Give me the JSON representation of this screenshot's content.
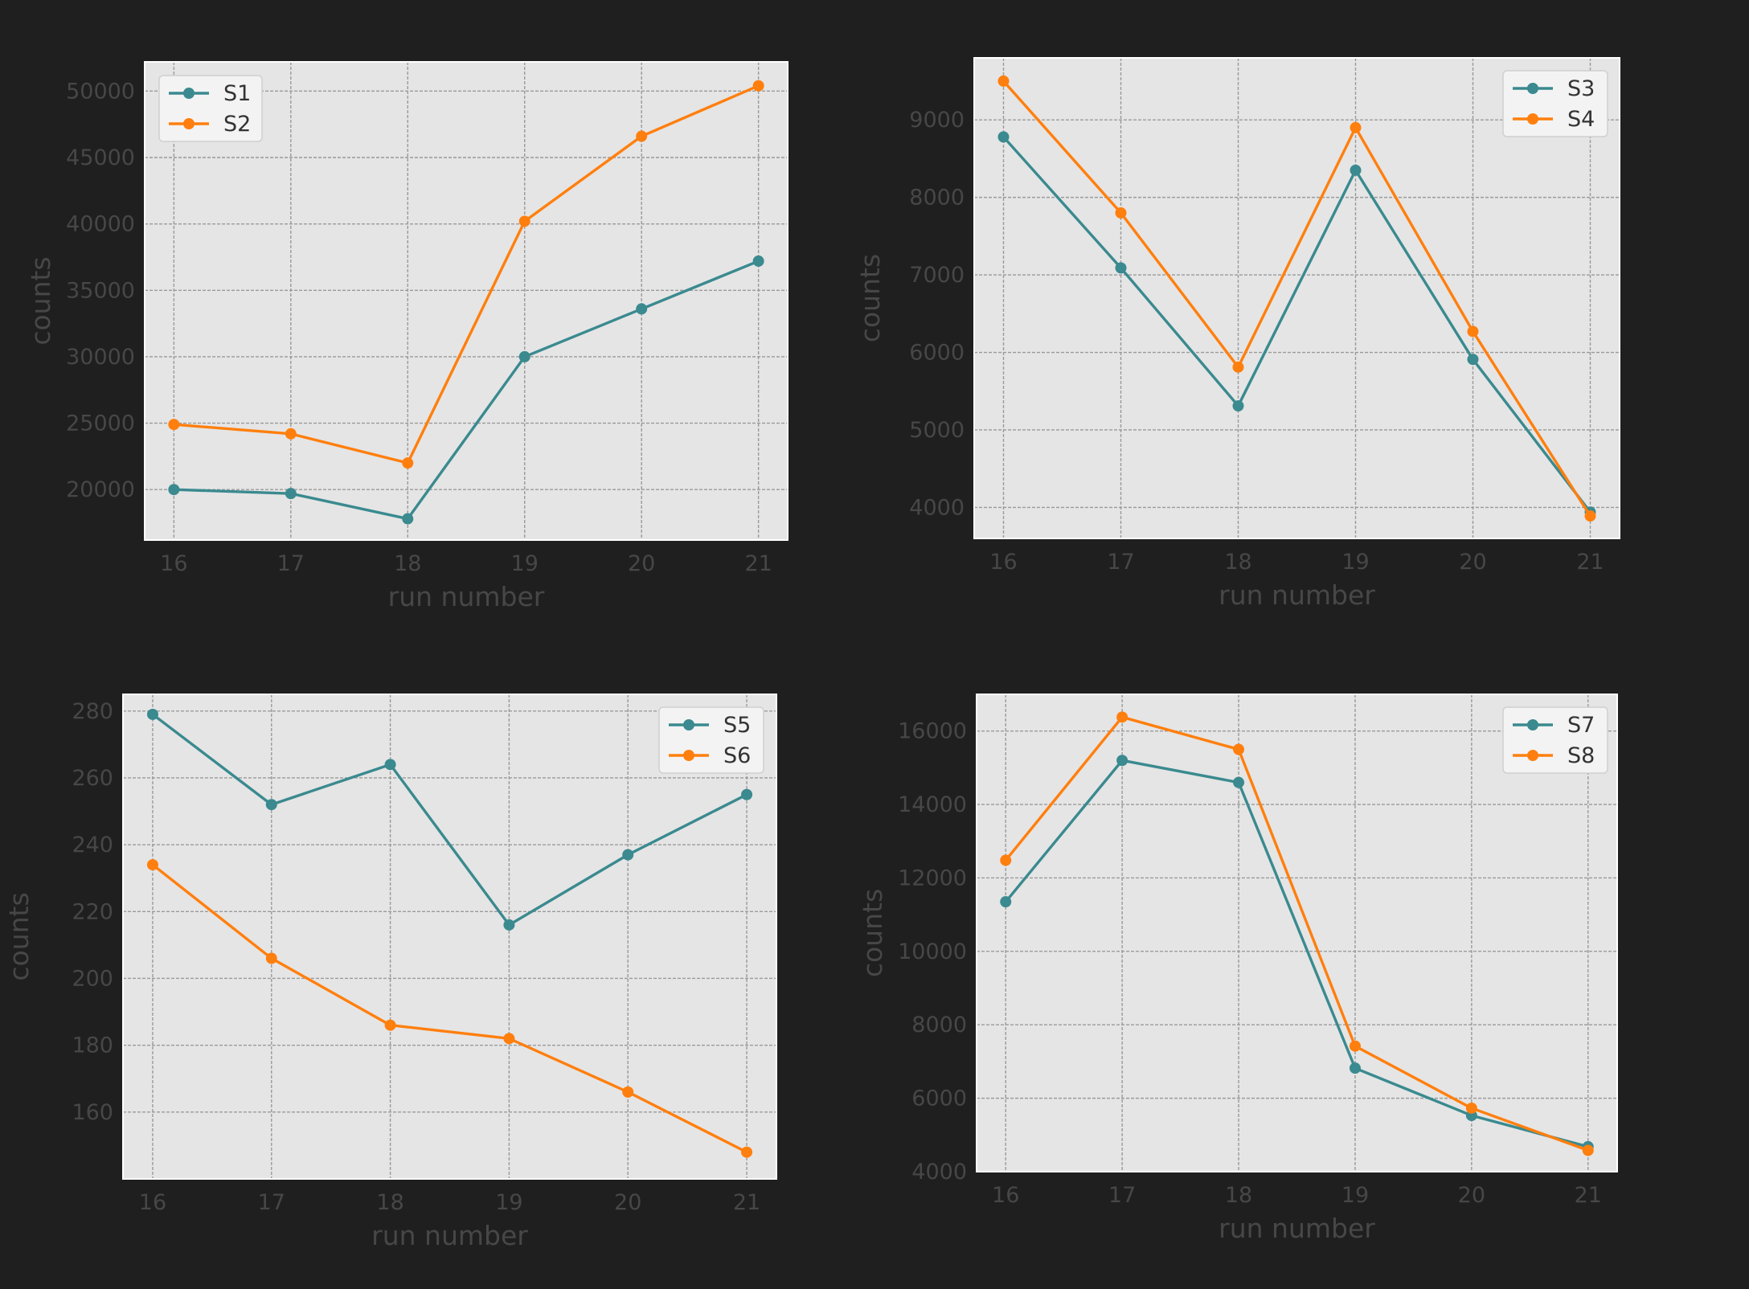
{
  "figure": {
    "background": "#1f1f1f",
    "plot_background": "#e5e5e5",
    "colors": {
      "teal": "#3a8a8f",
      "orange": "#ff7f0e"
    }
  },
  "chart_data": [
    {
      "type": "line",
      "title": "",
      "xlabel": "run number",
      "ylabel": "counts",
      "x": [
        16,
        17,
        18,
        19,
        20,
        21
      ],
      "xlim": [
        15.75,
        21.25
      ],
      "ylim": [
        16200,
        52200
      ],
      "yticks": [
        20000,
        25000,
        30000,
        35000,
        40000,
        45000,
        50000
      ],
      "grid": true,
      "legend_position": "top-left",
      "series": [
        {
          "name": "S1",
          "color": "#3a8a8f",
          "values": [
            20000,
            19700,
            17800,
            30000,
            33600,
            37200
          ]
        },
        {
          "name": "S2",
          "color": "#ff7f0e",
          "values": [
            24900,
            24200,
            22000,
            40200,
            46600,
            50400
          ]
        }
      ]
    },
    {
      "type": "line",
      "title": "",
      "xlabel": "run number",
      "ylabel": "counts",
      "x": [
        16,
        17,
        18,
        19,
        20,
        21
      ],
      "xlim": [
        15.75,
        21.25
      ],
      "ylim": [
        3600,
        9800
      ],
      "yticks": [
        4000,
        5000,
        6000,
        7000,
        8000,
        9000
      ],
      "grid": true,
      "legend_position": "top-right",
      "series": [
        {
          "name": "S3",
          "color": "#3a8a8f",
          "values": [
            8780,
            7090,
            5310,
            8350,
            5910,
            3940
          ]
        },
        {
          "name": "S4",
          "color": "#ff7f0e",
          "values": [
            9500,
            7800,
            5810,
            8900,
            6270,
            3890
          ]
        }
      ]
    },
    {
      "type": "line",
      "title": "",
      "xlabel": "run number",
      "ylabel": "counts",
      "x": [
        16,
        17,
        18,
        19,
        20,
        21
      ],
      "xlim": [
        15.75,
        21.25
      ],
      "ylim": [
        140,
        285
      ],
      "yticks": [
        160,
        180,
        200,
        220,
        240,
        260,
        280
      ],
      "grid": true,
      "legend_position": "top-right",
      "series": [
        {
          "name": "S5",
          "color": "#3a8a8f",
          "values": [
            279,
            252,
            264,
            216,
            237,
            255
          ]
        },
        {
          "name": "S6",
          "color": "#ff7f0e",
          "values": [
            234,
            206,
            186,
            182,
            166,
            148
          ]
        }
      ]
    },
    {
      "type": "line",
      "title": "",
      "xlabel": "run number",
      "ylabel": "counts",
      "x": [
        16,
        17,
        18,
        19,
        20,
        21
      ],
      "xlim": [
        15.75,
        21.25
      ],
      "ylim": [
        4000,
        17000
      ],
      "yticks": [
        4000,
        6000,
        8000,
        10000,
        12000,
        14000,
        16000
      ],
      "grid": true,
      "legend_position": "top-right",
      "series": [
        {
          "name": "S7",
          "color": "#3a8a8f",
          "values": [
            11350,
            15200,
            14600,
            6820,
            5530,
            4680
          ]
        },
        {
          "name": "S8",
          "color": "#ff7f0e",
          "values": [
            12480,
            16380,
            15500,
            7420,
            5730,
            4580
          ]
        }
      ]
    }
  ]
}
